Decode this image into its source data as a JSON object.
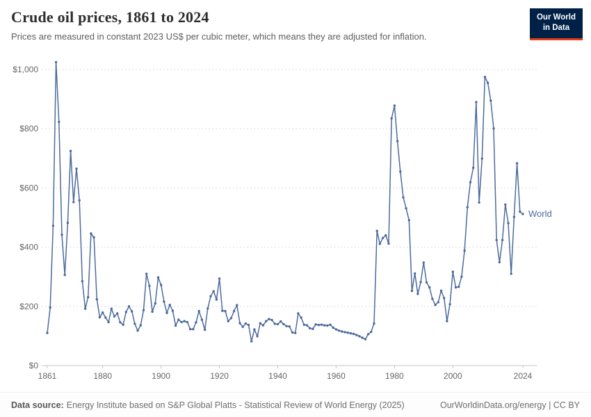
{
  "header": {
    "title": "Crude oil prices, 1861 to 2024",
    "subtitle": "Prices are measured in constant 2023 US$ per cubic meter, which means they are adjusted for inflation.",
    "logo": {
      "line1": "Our World",
      "line2": "in Data"
    }
  },
  "footer": {
    "source_label": "Data source:",
    "source_text": "Energy Institute based on S&P Global Platts - Statistical Review of World Energy (2025)",
    "right_text": "OurWorldinData.org/energy | CC BY"
  },
  "colors": {
    "series_blue": "#4c6a9c",
    "owid_navy": "#002147",
    "owid_red": "#e63b19",
    "axis_text": "#666666",
    "gridline": "#dedede",
    "axis_line": "#c4c4c4"
  },
  "chart_data": {
    "type": "line",
    "title": "Crude oil prices, 1861 to 2024",
    "subtitle": "Prices are measured in constant 2023 US$ per cubic meter, which means they are adjusted for inflation.",
    "xlabel": "",
    "ylabel": "constant 2023 US$ per cubic meter",
    "year_start": 1861,
    "year_end": 2024,
    "xticks": [
      1861,
      1880,
      1900,
      1920,
      1940,
      1960,
      1980,
      2000,
      2024
    ],
    "yticks": [
      {
        "value": 0,
        "label": "$0"
      },
      {
        "value": 200,
        "label": "$200"
      },
      {
        "value": 400,
        "label": "$400"
      },
      {
        "value": 600,
        "label": "$600"
      },
      {
        "value": 800,
        "label": "$800"
      },
      {
        "value": 1000,
        "label": "$1,000"
      }
    ],
    "ylim": [
      0,
      1050
    ],
    "grid": "horizontal-dashed",
    "legend": "inline-end-label",
    "series": [
      {
        "name": "World",
        "color": "#4c6a9c",
        "values": [
          110,
          196,
          472,
          1025,
          823,
          442,
          306,
          482,
          725,
          552,
          665,
          558,
          285,
          192,
          231,
          446,
          433,
          224,
          163,
          179,
          162,
          147,
          192,
          166,
          176,
          146,
          138,
          181,
          200,
          183,
          141,
          118,
          136,
          187,
          310,
          269,
          182,
          210,
          298,
          272,
          216,
          178,
          205,
          185,
          135,
          155,
          147,
          150,
          147,
          123,
          123,
          146,
          184,
          155,
          121,
          193,
          234,
          251,
          223,
          294,
          185,
          184,
          150,
          160,
          184,
          204,
          143,
          131,
          142,
          137,
          82,
          122,
          99,
          143,
          136,
          150,
          157,
          154,
          141,
          140,
          149,
          140,
          133,
          132,
          112,
          110,
          176,
          162,
          138,
          136,
          126,
          124,
          139,
          137,
          138,
          136,
          135,
          138,
          128,
          122,
          118,
          115,
          113,
          111,
          109,
          107,
          103,
          99,
          94,
          89,
          106,
          114,
          142,
          455,
          411,
          431,
          440,
          412,
          835,
          878,
          758,
          655,
          568,
          531,
          491,
          252,
          311,
          242,
          282,
          348,
          281,
          264,
          225,
          205,
          214,
          253,
          228,
          150,
          207,
          317,
          264,
          266,
          300,
          388,
          535,
          619,
          668,
          890,
          551,
          699,
          975,
          955,
          895,
          801,
          424,
          349,
          424,
          544,
          481,
          310,
          502,
          683,
          520,
          512
        ]
      }
    ]
  }
}
